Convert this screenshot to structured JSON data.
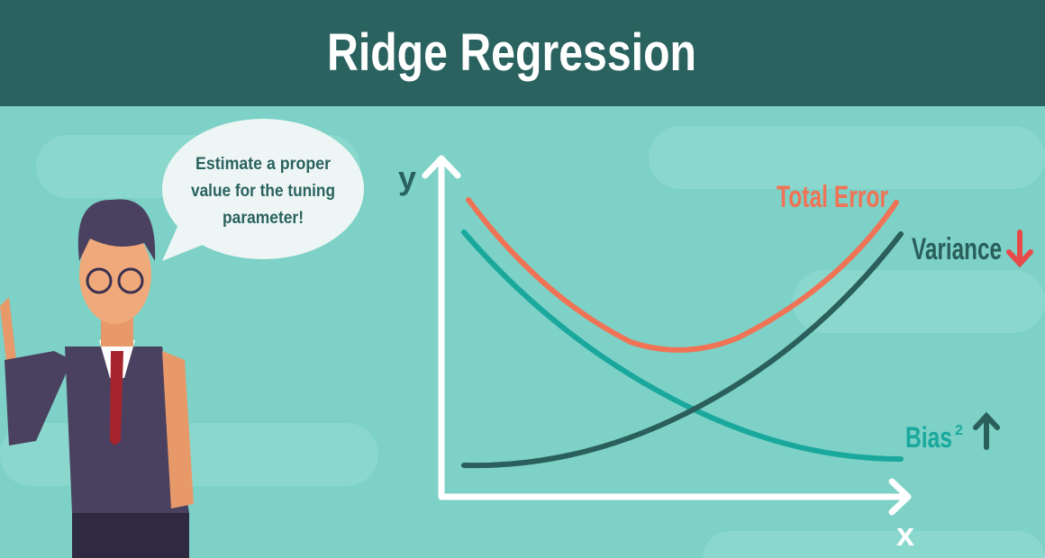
{
  "header": {
    "title": "Ridge Regression"
  },
  "speech_bubble": {
    "lines": [
      "Estimate a proper",
      "value for the tuning",
      "parameter!"
    ]
  },
  "diagram": {
    "y_axis_label": "y",
    "x_axis_label": "x",
    "curves": [
      {
        "label": "Total Error"
      },
      {
        "label": "Variance"
      },
      {
        "label": "Bias",
        "superscript": "2"
      }
    ]
  }
}
